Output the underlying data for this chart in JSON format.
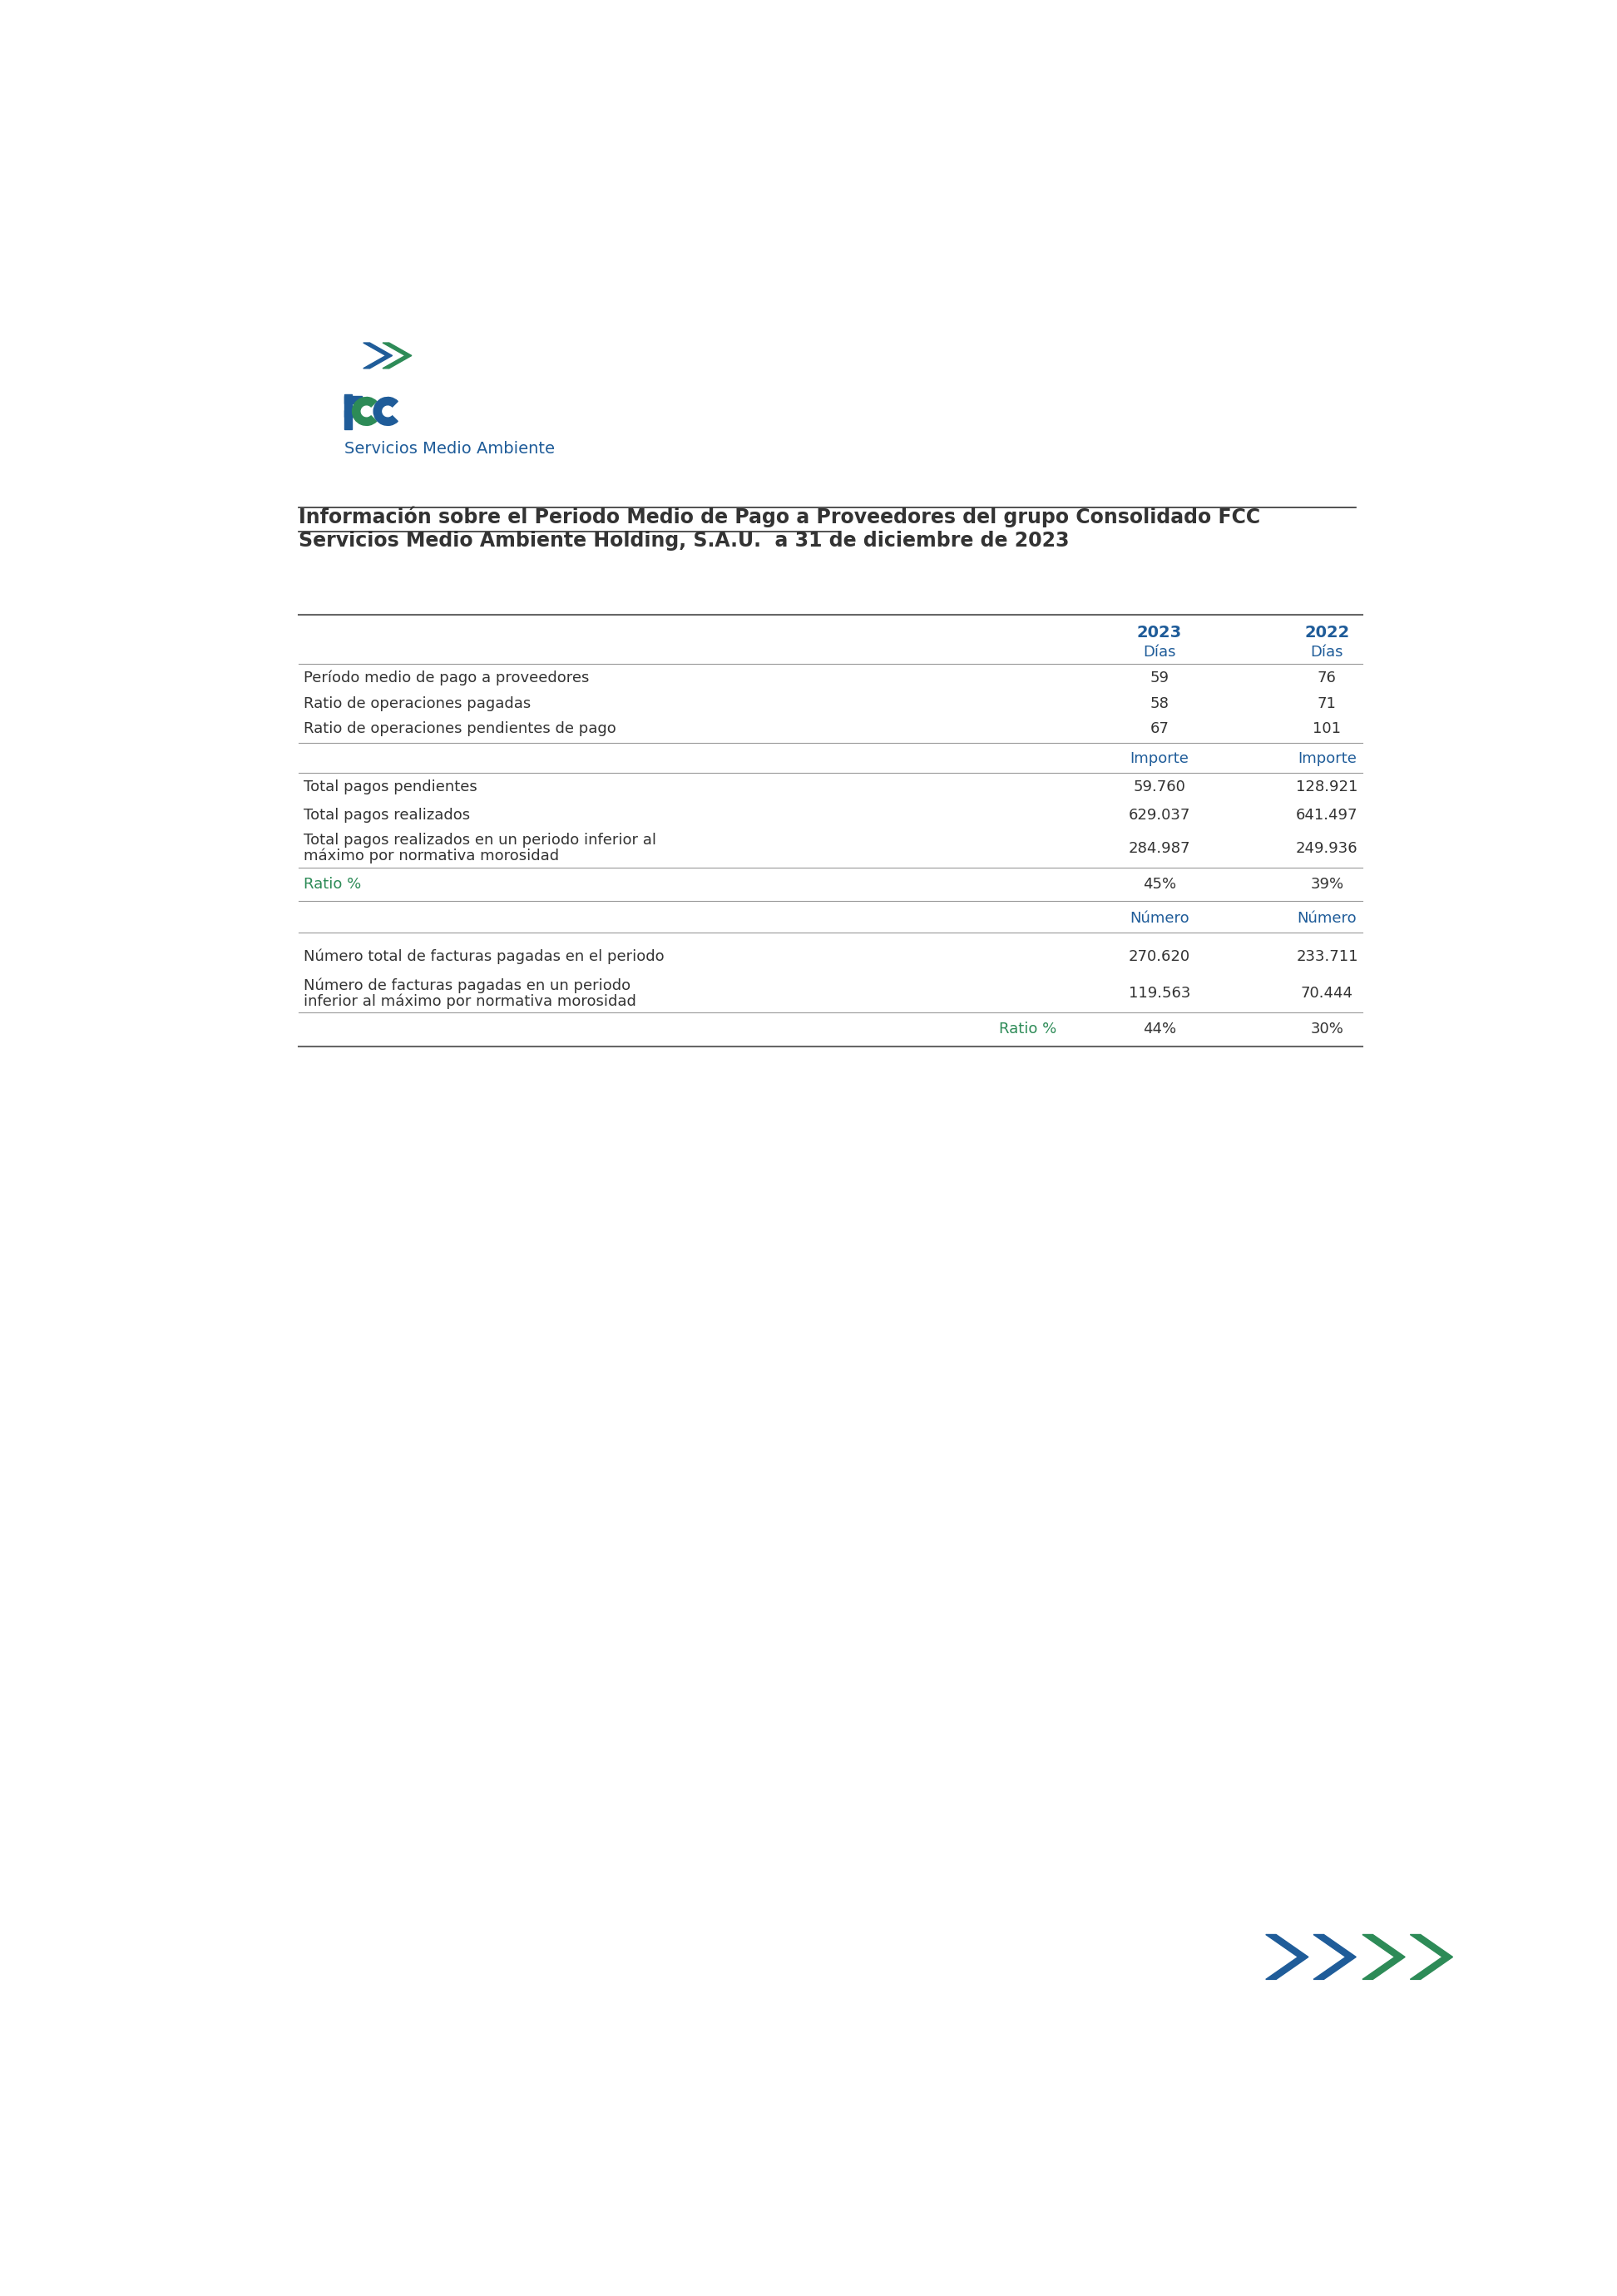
{
  "title_line1": "Información sobre el Periodo Medio de Pago a Proveedores del grupo Consolidado FCC",
  "title_line2": "Servicios Medio Ambiente Holding, S.A.U.  a 31 de diciembre de 2023",
  "col_headers": [
    "2023",
    "2022"
  ],
  "subheaders_dias": [
    "Días",
    "Días"
  ],
  "subheaders_importe": [
    "Importe",
    "Importe"
  ],
  "subheaders_numero": [
    "Número",
    "Número"
  ],
  "rows_dias": [
    [
      "Período medio de pago a proveedores",
      "59",
      "76"
    ],
    [
      "Ratio de operaciones pagadas",
      "58",
      "71"
    ],
    [
      "Ratio de operaciones pendientes de pago",
      "67",
      "101"
    ]
  ],
  "rows_importe": [
    [
      "Total pagos pendientes",
      "59.760",
      "128.921"
    ],
    [
      "Total pagos realizados",
      "629.037",
      "641.497"
    ],
    [
      "Total pagos realizados en un periodo inferior al\nmáximo por normativa morosidad",
      "284.987",
      "249.936"
    ]
  ],
  "ratio_row1": [
    "Ratio %",
    "45%",
    "39%"
  ],
  "rows_numero": [
    [
      "Número total de facturas pagadas en el periodo",
      "270.620",
      "233.711"
    ],
    [
      "Número de facturas pagadas en un periodo\ninferior al máximo por normativa morosidad",
      "119.563",
      "70.444"
    ]
  ],
  "ratio_row2": [
    "Ratio %",
    "44%",
    "30%"
  ],
  "blue_color": "#1F5C99",
  "green_color": "#2D8B57",
  "ratio_green": "#2D8B57",
  "line_color": "#999999",
  "text_color": "#333333",
  "background": "#FFFFFF"
}
